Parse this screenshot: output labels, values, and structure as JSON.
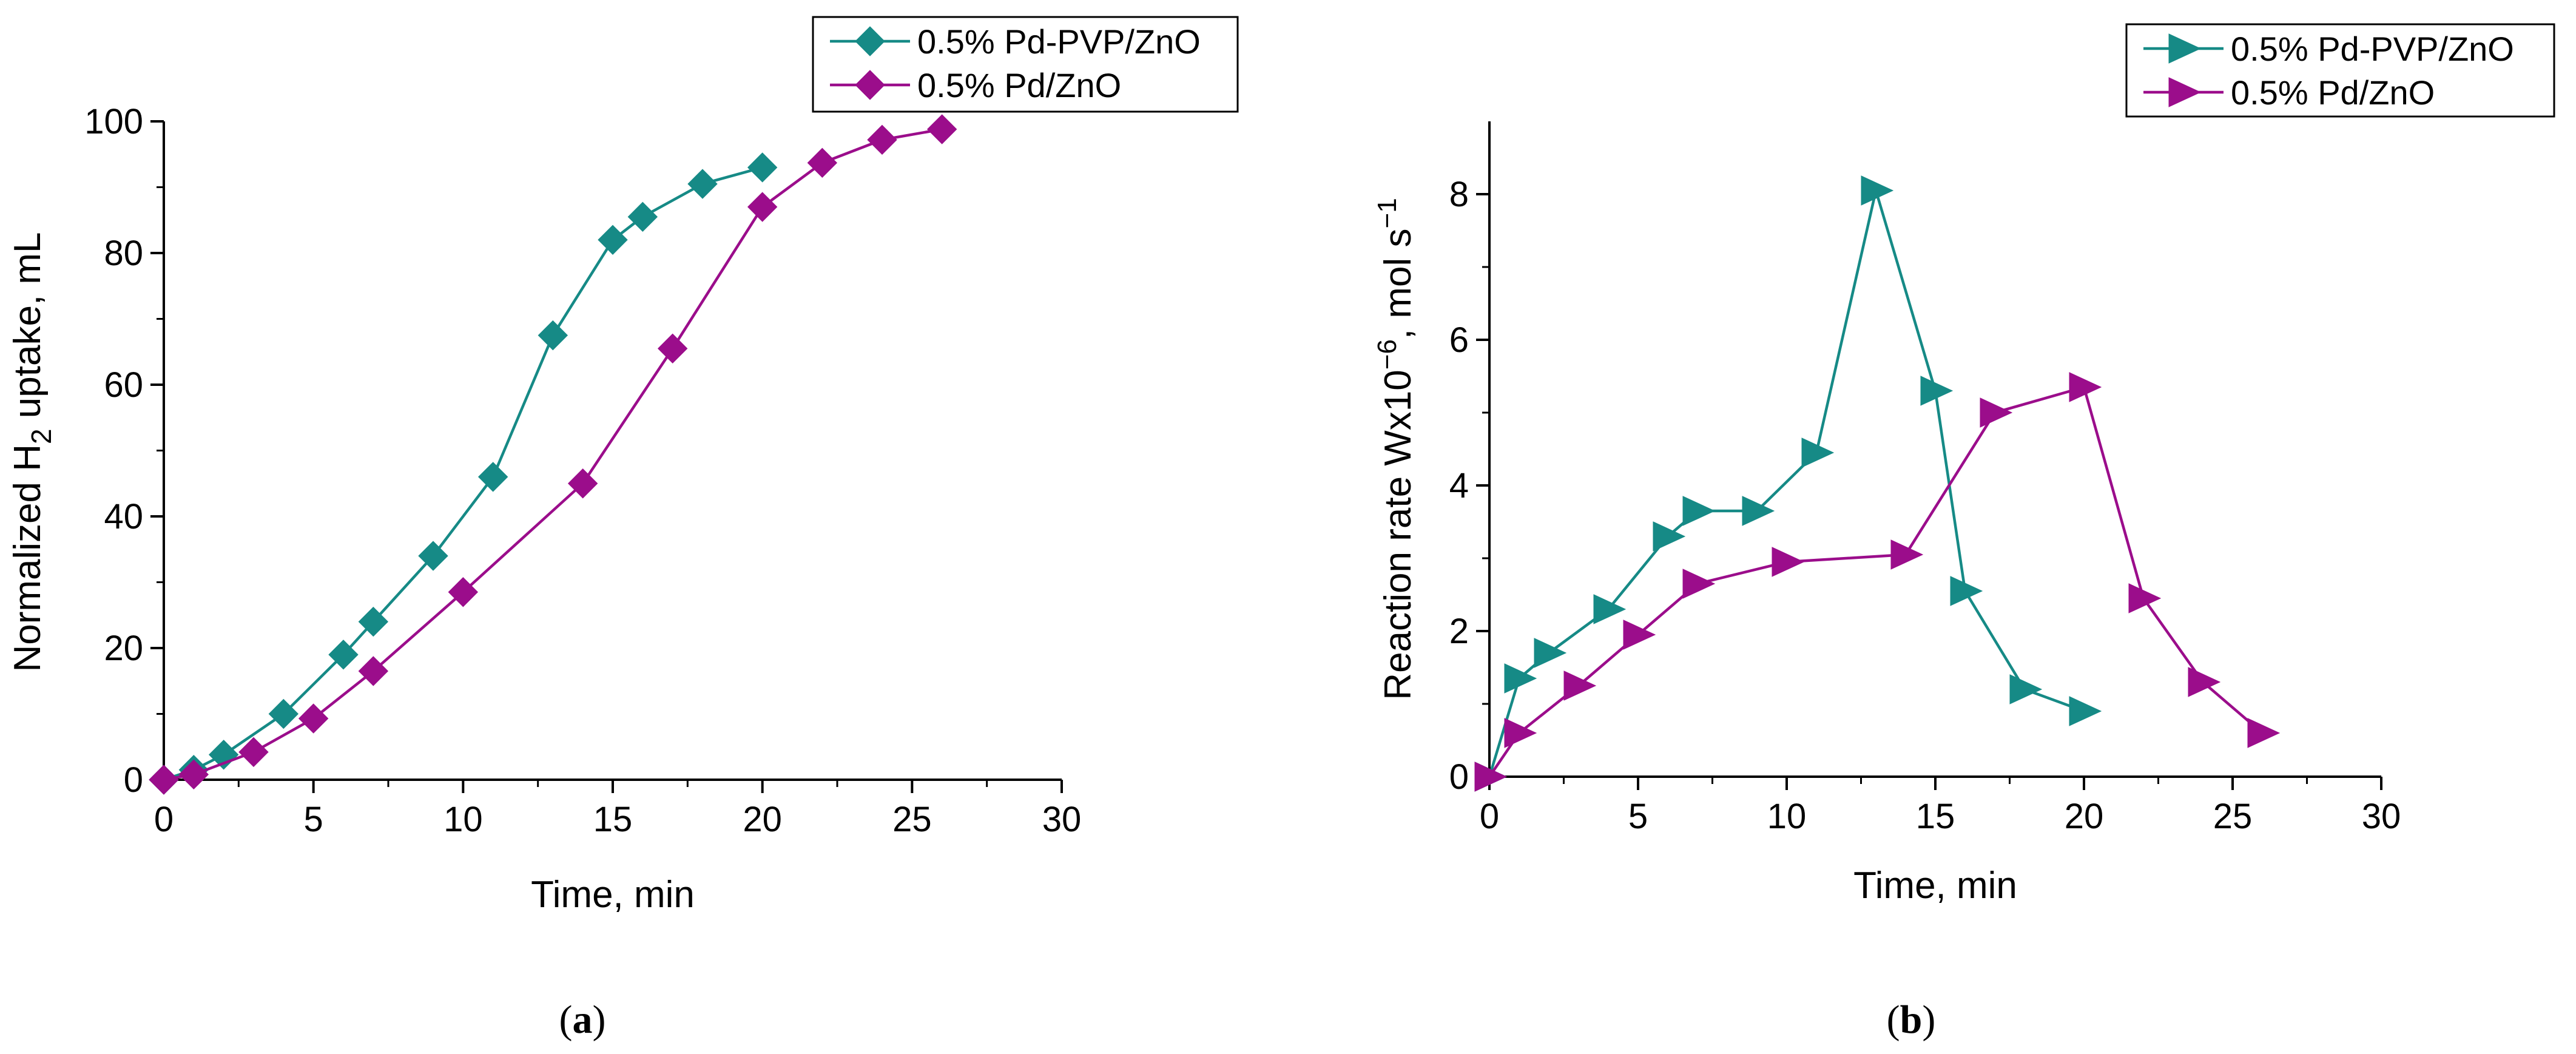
{
  "chart_data": [
    {
      "type": "line",
      "panel_label": "a",
      "xlabel": "Time, min",
      "ylabel_main": "Normalized H",
      "ylabel_sub": "2",
      "ylabel_tail": " uptake, mL",
      "xlim": [
        0,
        30
      ],
      "ylim": [
        0,
        100
      ],
      "xticks": [
        0,
        5,
        10,
        15,
        20,
        25,
        30
      ],
      "yticks": [
        0,
        20,
        40,
        60,
        80,
        100
      ],
      "marker": "diamond",
      "legend_position": "top-right",
      "series": [
        {
          "name": "0.5% Pd-PVP/ZnO",
          "color": "#168A86",
          "x": [
            0,
            1,
            2,
            4,
            6,
            7,
            9,
            11,
            13,
            15,
            16,
            18,
            20
          ],
          "y": [
            0,
            1.5,
            3.8,
            10,
            19,
            24,
            34,
            46,
            67.5,
            82,
            85.5,
            90.5,
            93
          ]
        },
        {
          "name": "0.5% Pd/ZnO",
          "color": "#9B0D8B",
          "x": [
            0,
            1,
            3,
            5,
            7,
            10,
            14,
            17,
            20,
            22,
            24,
            26
          ],
          "y": [
            0,
            0.8,
            4.2,
            9.3,
            16.5,
            28.5,
            45,
            65.5,
            87,
            93.7,
            97.2,
            98.8
          ]
        }
      ]
    },
    {
      "type": "line",
      "panel_label": "b",
      "xlabel": "Time, min",
      "ylabel_main": "Reaction rate Wx10",
      "ylabel_sup1": "−6",
      "ylabel_mid": ", mol s",
      "ylabel_sup2": "−1",
      "xlim": [
        0,
        30
      ],
      "ylim": [
        0,
        9
      ],
      "xticks": [
        0,
        5,
        10,
        15,
        20,
        25,
        30
      ],
      "yticks": [
        0,
        2,
        4,
        6,
        8
      ],
      "marker": "triangle-right",
      "legend_position": "top-right",
      "series": [
        {
          "name": "0.5% Pd-PVP/ZnO",
          "color": "#168A86",
          "x": [
            0,
            1,
            2,
            4,
            6,
            7,
            9,
            11,
            13,
            15,
            16,
            18,
            20
          ],
          "y": [
            0,
            1.35,
            1.7,
            2.3,
            3.3,
            3.65,
            3.65,
            4.45,
            8.05,
            5.3,
            2.55,
            1.2,
            0.9
          ]
        },
        {
          "name": "0.5% Pd/ZnO",
          "color": "#9B0D8B",
          "x": [
            0,
            1,
            3,
            5,
            7,
            10,
            14,
            17,
            20,
            22,
            24,
            26
          ],
          "y": [
            0,
            0.6,
            1.25,
            1.95,
            2.65,
            2.95,
            3.05,
            5.0,
            5.35,
            2.45,
            1.3,
            0.6
          ]
        }
      ]
    }
  ]
}
